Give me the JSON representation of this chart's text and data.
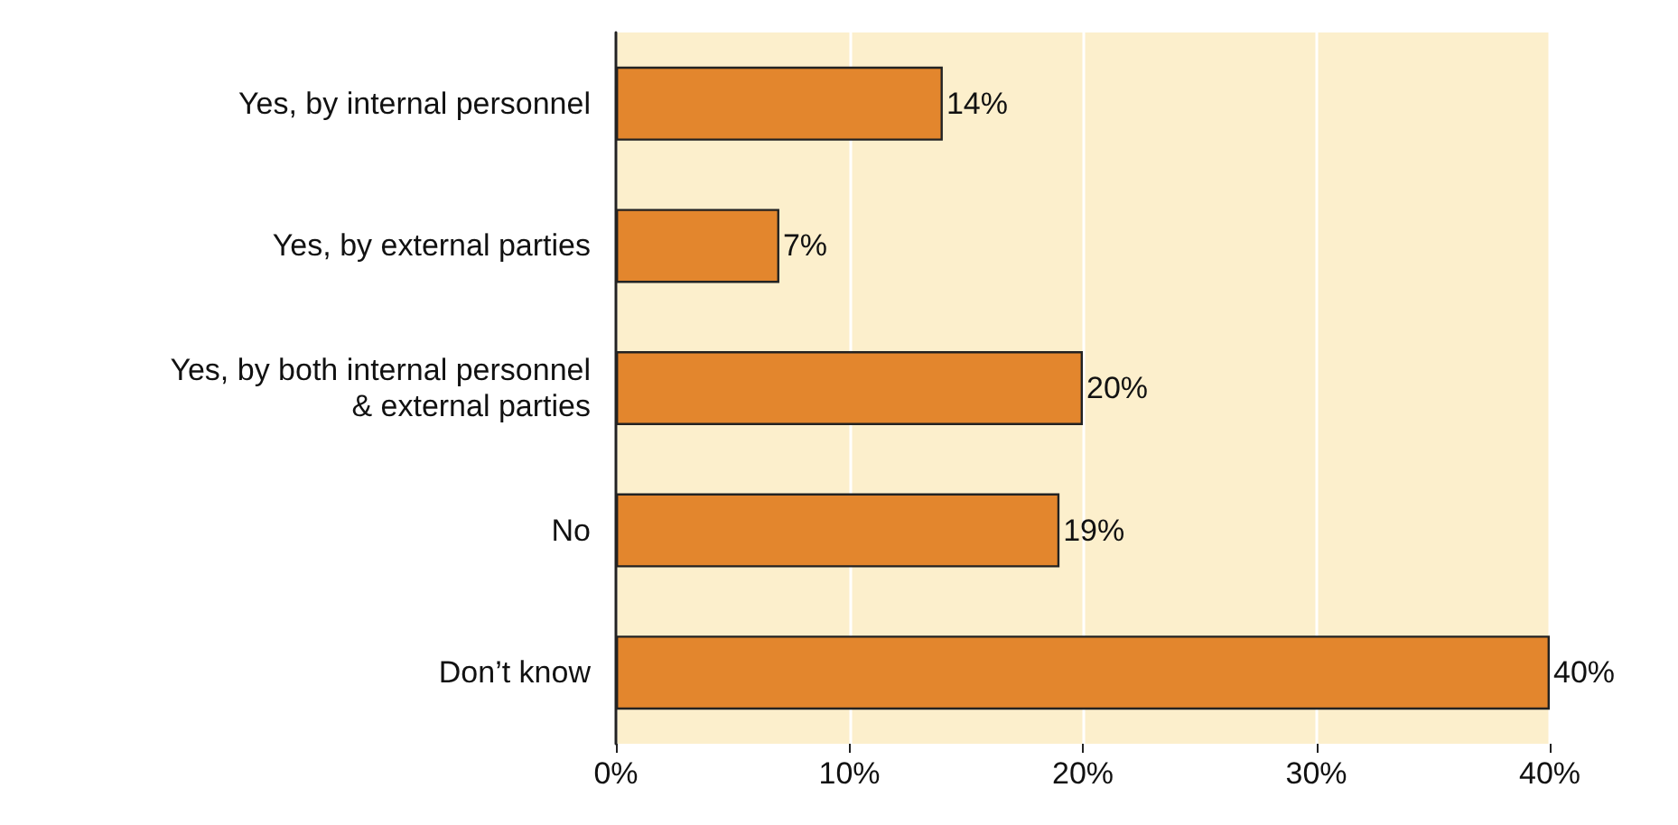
{
  "chart_data": {
    "type": "bar",
    "orientation": "horizontal",
    "categories": [
      "Yes, by internal personnel",
      "Yes, by external parties",
      "Yes, by both internal personnel\n& external parties",
      "No",
      "Don’t know"
    ],
    "values": [
      14,
      7,
      20,
      19,
      40
    ],
    "value_labels": [
      "14%",
      "7%",
      "20%",
      "19%",
      "40%"
    ],
    "color": "#e3862d",
    "xlim": [
      0,
      40
    ],
    "xticks": [
      {
        "value": 0,
        "label": "0%"
      },
      {
        "value": 10,
        "label": "10%"
      },
      {
        "value": 20,
        "label": "20%"
      },
      {
        "value": 30,
        "label": "30%"
      },
      {
        "value": 40,
        "label": "40%"
      }
    ],
    "grid": "x"
  }
}
